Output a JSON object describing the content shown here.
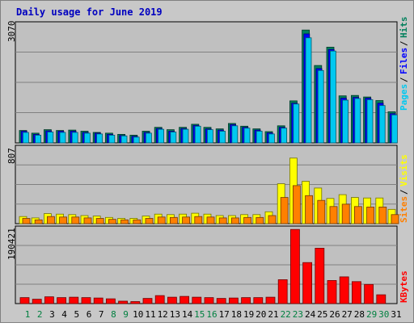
{
  "chart_data": [
    {
      "type": "bar",
      "title": "Daily usage for June 2019",
      "ylabel_max": "3070",
      "ymax": 3070,
      "categories": [
        "1",
        "2",
        "3",
        "4",
        "5",
        "6",
        "7",
        "8",
        "9",
        "10",
        "11",
        "12",
        "13",
        "14",
        "15",
        "16",
        "17",
        "18",
        "19",
        "20",
        "21",
        "22",
        "23",
        "24",
        "25",
        "26",
        "27",
        "28",
        "29",
        "30",
        "31"
      ],
      "weekend_days": [
        "1",
        "2",
        "8",
        "9",
        "15",
        "16",
        "22",
        "23",
        "29",
        "30"
      ],
      "series": [
        {
          "name": "Hits",
          "color": "#00805c",
          "values": [
            320,
            250,
            340,
            320,
            330,
            300,
            270,
            250,
            220,
            200,
            300,
            400,
            340,
            400,
            480,
            400,
            360,
            500,
            430,
            360,
            290,
            440,
            1080,
            2900,
            1990,
            2460,
            1210,
            1220,
            1180,
            1090,
            800
          ]
        },
        {
          "name": "Files",
          "color": "#0000ff",
          "values": [
            300,
            220,
            310,
            300,
            300,
            270,
            250,
            220,
            190,
            170,
            270,
            370,
            300,
            370,
            450,
            360,
            330,
            470,
            400,
            330,
            260,
            400,
            1020,
            2800,
            1910,
            2400,
            1150,
            1170,
            1150,
            1020,
            750
          ]
        },
        {
          "name": "Pages",
          "color": "#00c8f0",
          "values": [
            270,
            200,
            280,
            270,
            270,
            250,
            230,
            200,
            180,
            150,
            250,
            350,
            280,
            350,
            430,
            340,
            300,
            440,
            380,
            300,
            230,
            380,
            1000,
            2700,
            1860,
            2360,
            1100,
            1140,
            1110,
            960,
            720
          ]
        }
      ],
      "legend_placement": "right"
    },
    {
      "type": "bar",
      "ylabel_max": "807",
      "ymax": 807,
      "series": [
        {
          "name": "Visits",
          "color": "#ffff00",
          "values": [
            75,
            60,
            105,
            100,
            95,
            85,
            80,
            65,
            55,
            55,
            80,
            100,
            95,
            100,
            110,
            100,
            85,
            85,
            95,
            95,
            125,
            420,
            690,
            445,
            375,
            265,
            305,
            275,
            270,
            270,
            150
          ]
        },
        {
          "name": "Sites",
          "color": "#ff8000",
          "values": [
            55,
            40,
            75,
            70,
            70,
            60,
            55,
            45,
            40,
            40,
            55,
            70,
            65,
            70,
            75,
            70,
            60,
            60,
            65,
            65,
            85,
            275,
            400,
            295,
            245,
            180,
            205,
            180,
            175,
            175,
            95
          ]
        }
      ],
      "legend_placement": "right"
    },
    {
      "type": "bar",
      "ylabel_max": "190421",
      "ymax": 190421,
      "series": [
        {
          "name": "KBytes",
          "color": "#ff0000",
          "values": [
            15000,
            11000,
            17000,
            15000,
            16000,
            15000,
            14000,
            12000,
            6000,
            5000,
            13000,
            20000,
            16000,
            18000,
            16000,
            15000,
            13000,
            14000,
            15000,
            15000,
            16000,
            60000,
            186000,
            103000,
            139000,
            58000,
            67000,
            55000,
            48000,
            22000,
            0
          ]
        }
      ],
      "legend_placement": "right"
    }
  ]
}
